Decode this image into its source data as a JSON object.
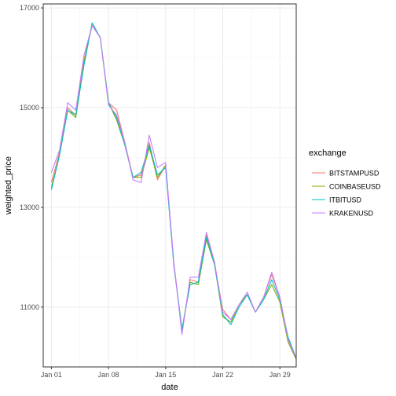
{
  "chart_data": {
    "type": "line",
    "xlabel": "date",
    "ylabel": "weighted_price",
    "x_tick_labels": [
      "Jan 01",
      "Jan 08",
      "Jan 15",
      "Jan 22",
      "Jan 29"
    ],
    "x_tick_dates": [
      "2018-01-01",
      "2018-01-08",
      "2018-01-15",
      "2018-01-22",
      "2018-01-29"
    ],
    "y_ticks": [
      11000,
      13000,
      15000,
      17000
    ],
    "y_tick_labels": [
      "11000",
      "13000",
      "15000",
      "17000"
    ],
    "xlim": [
      "2017-12-31",
      "2018-01-31"
    ],
    "ylim": [
      9800,
      17080
    ],
    "grid": true,
    "legend_title": "exchange",
    "legend_position": "right",
    "x": [
      "2018-01-01",
      "2018-01-02",
      "2018-01-03",
      "2018-01-04",
      "2018-01-05",
      "2018-01-06",
      "2018-01-07",
      "2018-01-08",
      "2018-01-09",
      "2018-01-10",
      "2018-01-11",
      "2018-01-12",
      "2018-01-13",
      "2018-01-14",
      "2018-01-15",
      "2018-01-16",
      "2018-01-17",
      "2018-01-18",
      "2018-01-19",
      "2018-01-20",
      "2018-01-21",
      "2018-01-22",
      "2018-01-23",
      "2018-01-24",
      "2018-01-25",
      "2018-01-26",
      "2018-01-27",
      "2018-01-28",
      "2018-01-29",
      "2018-01-30",
      "2018-01-31"
    ],
    "series": [
      {
        "name": "BITSTAMPUSD",
        "color": "#F8766D",
        "values": [
          13500,
          14100,
          15000,
          14850,
          15950,
          16650,
          16400,
          15100,
          14950,
          14300,
          13600,
          13650,
          14300,
          13550,
          13850,
          11900,
          10500,
          11550,
          11500,
          12450,
          11850,
          10950,
          10750,
          11050,
          11250,
          10900,
          11200,
          11650,
          11200,
          10350,
          9970
        ]
      },
      {
        "name": "COINBASEUSD",
        "color": "#7CAE00",
        "values": [
          13400,
          14050,
          14950,
          14800,
          15900,
          16700,
          16400,
          15100,
          14750,
          14250,
          13600,
          13600,
          14200,
          13600,
          13850,
          11850,
          10550,
          11500,
          11450,
          12350,
          11850,
          10800,
          10700,
          11050,
          11250,
          10900,
          11150,
          11450,
          11100,
          10300,
          9950
        ]
      },
      {
        "name": "ITBITUSD",
        "color": "#00BFC4",
        "values": [
          13350,
          14050,
          14950,
          14850,
          15850,
          16700,
          16400,
          15100,
          14800,
          14250,
          13600,
          13700,
          14250,
          13650,
          13800,
          11850,
          10550,
          11450,
          11500,
          12400,
          11850,
          10850,
          10650,
          11000,
          11250,
          10900,
          11150,
          11550,
          11150,
          10400,
          9980
        ]
      },
      {
        "name": "KRAKENUSD",
        "color": "#C77CFF",
        "values": [
          13700,
          14150,
          15100,
          14950,
          16050,
          16650,
          16400,
          15050,
          14850,
          14300,
          13550,
          13500,
          14450,
          13800,
          13900,
          11900,
          10450,
          11600,
          11600,
          12500,
          11900,
          10900,
          10750,
          11050,
          11300,
          10900,
          11200,
          11700,
          11200,
          10350,
          9980
        ]
      }
    ]
  }
}
